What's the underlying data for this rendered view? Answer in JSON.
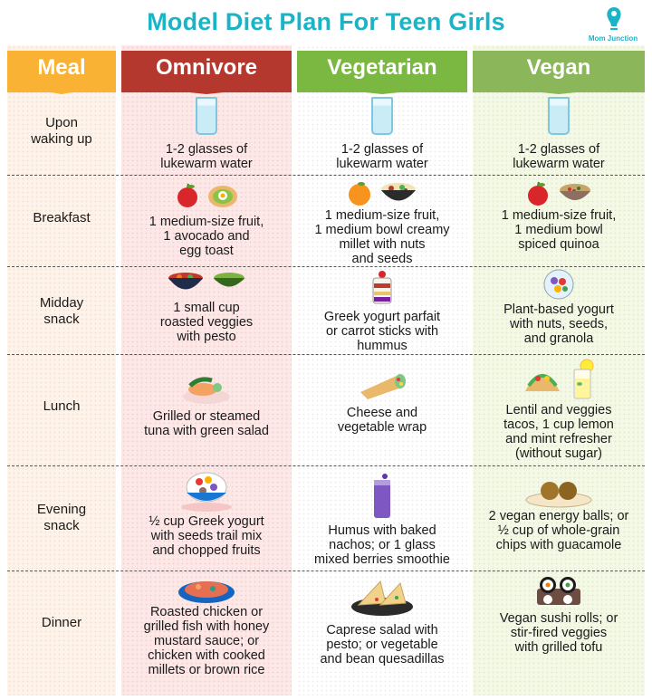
{
  "title": "Model Diet Plan For Teen Girls",
  "logo": {
    "text": "Mom Junction"
  },
  "headers": {
    "meal": "Meal",
    "omnivore": "Omnivore",
    "vegetarian": "Vegetarian",
    "vegan": "Vegan"
  },
  "rows": [
    {
      "meal": "Upon\nwaking up",
      "omnivore": "1-2 glasses of\nlukewarm water",
      "vegetarian": "1-2 glasses of\nlukewarm water",
      "vegan": "1-2 glasses of\nlukewarm water"
    },
    {
      "meal": "Breakfast",
      "omnivore": "1 medium-size fruit,\n1 avocado and\negg toast",
      "vegetarian": "1 medium-size fruit,\n1 medium bowl creamy\nmillet with nuts\nand seeds",
      "vegan": "1 medium-size fruit,\n1 medium bowl\nspiced quinoa"
    },
    {
      "meal": "Midday\nsnack",
      "omnivore": "1 small cup\nroasted veggies\nwith pesto",
      "vegetarian": "Greek yogurt parfait\nor carrot sticks with\nhummus",
      "vegan": "Plant-based yogurt\nwith nuts, seeds,\nand granola"
    },
    {
      "meal": "Lunch",
      "omnivore": "Grilled or steamed\ntuna with green salad",
      "vegetarian": "Cheese and\nvegetable wrap",
      "vegan": "Lentil and veggies\ntacos, 1 cup lemon\nand mint refresher\n(without sugar)"
    },
    {
      "meal": "Evening\nsnack",
      "omnivore": "½ cup Greek yogurt\nwith seeds trail mix\nand chopped fruits",
      "vegetarian": "Humus with baked\nnachos; or 1 glass\nmixed berries smoothie",
      "vegan": "2 vegan energy balls; or\n½ cup of whole-grain\nchips with guacamole"
    },
    {
      "meal": "Dinner",
      "omnivore": "Roasted chicken or\ngrilled fish with honey\nmustard sauce; or\nchicken with cooked\nmillets or brown rice",
      "vegetarian": "Caprese salad with\npesto; or vegetable\nand bean quesadillas",
      "vegan": "Vegan sushi rolls; or\nstir-fired veggies\nwith grilled tofu"
    }
  ],
  "colors": {
    "title": "#1ab4c7",
    "meal_header": "#f9b233",
    "omnivore_header": "#b5382e",
    "vegetarian_header": "#7ab842",
    "vegan_header": "#8bb65a"
  },
  "icons": {
    "row1": [
      "water-glass-icon",
      "water-glass-icon",
      "water-glass-icon"
    ],
    "row2": [
      "apple-icon",
      "egg-toast-icon",
      "orange-icon",
      "millet-bowl-icon",
      "apple-icon",
      "quinoa-bowl-icon"
    ],
    "row3": [
      "veggie-bowl-icon",
      "pesto-bowl-icon",
      "parfait-icon",
      "yogurt-bowl-icon"
    ],
    "row4": [
      "tuna-salad-icon",
      "wrap-icon",
      "taco-icon",
      "lemon-drink-icon"
    ],
    "row5": [
      "yogurt-bowl-icon",
      "smoothie-icon",
      "energy-balls-icon"
    ],
    "row6": [
      "roasted-chicken-icon",
      "quesadilla-icon",
      "sushi-icon"
    ]
  }
}
